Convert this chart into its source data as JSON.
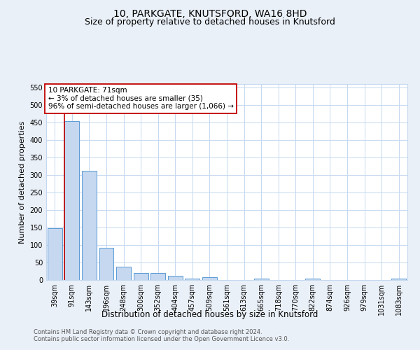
{
  "title": "10, PARKGATE, KNUTSFORD, WA16 8HD",
  "subtitle": "Size of property relative to detached houses in Knutsford",
  "xlabel": "Distribution of detached houses by size in Knutsford",
  "ylabel": "Number of detached properties",
  "categories": [
    "39sqm",
    "91sqm",
    "143sqm",
    "196sqm",
    "248sqm",
    "300sqm",
    "352sqm",
    "404sqm",
    "457sqm",
    "509sqm",
    "561sqm",
    "613sqm",
    "665sqm",
    "718sqm",
    "770sqm",
    "822sqm",
    "874sqm",
    "926sqm",
    "979sqm",
    "1031sqm",
    "1083sqm"
  ],
  "values": [
    148,
    455,
    312,
    93,
    38,
    20,
    21,
    13,
    5,
    8,
    0,
    0,
    5,
    0,
    0,
    5,
    0,
    0,
    0,
    0,
    5
  ],
  "bar_color": "#c5d8f0",
  "bar_edge_color": "#5b9bd5",
  "highlight_bar_idx": 1,
  "highlight_color": "#c00000",
  "annotation_line1": "10 PARKGATE: 71sqm",
  "annotation_line2": "← 3% of detached houses are smaller (35)",
  "annotation_line3": "96% of semi-detached houses are larger (1,066) →",
  "annotation_box_color": "#ffffff",
  "annotation_box_edge": "#c00000",
  "ylim": [
    0,
    560
  ],
  "yticks": [
    0,
    50,
    100,
    150,
    200,
    250,
    300,
    350,
    400,
    450,
    500,
    550
  ],
  "bg_color": "#eaf0f8",
  "plot_bg_color": "#ffffff",
  "grid_color": "#c5d8f0",
  "footer_line1": "Contains HM Land Registry data © Crown copyright and database right 2024.",
  "footer_line2": "Contains public sector information licensed under the Open Government Licence v3.0.",
  "title_fontsize": 10,
  "subtitle_fontsize": 9,
  "xlabel_fontsize": 8.5,
  "ylabel_fontsize": 8,
  "tick_fontsize": 7,
  "footer_fontsize": 6,
  "annotation_fontsize": 7.5
}
